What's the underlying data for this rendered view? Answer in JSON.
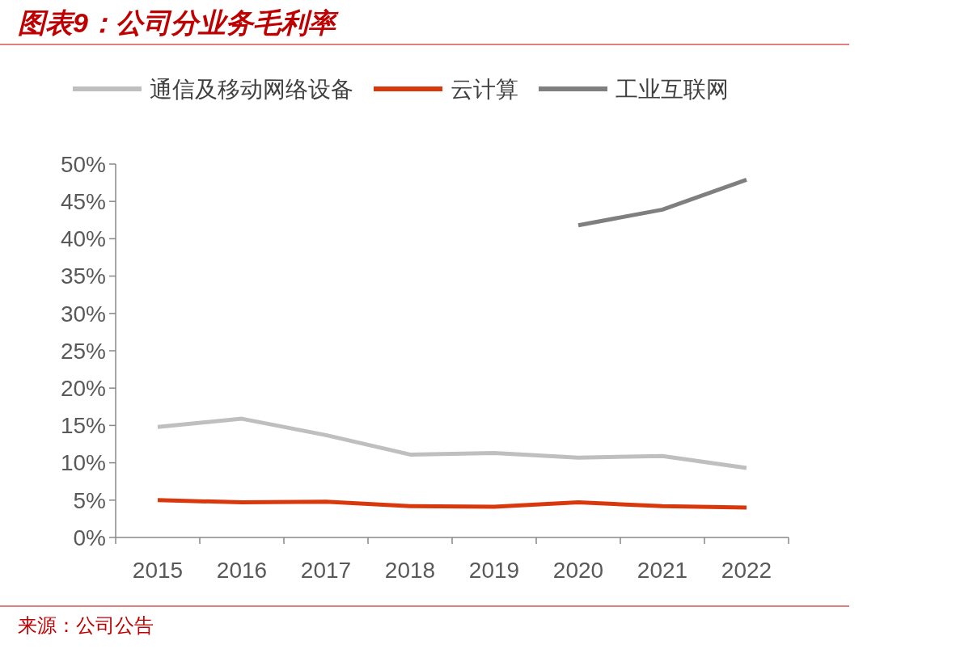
{
  "chart_data": {
    "type": "line",
    "title": "图表9：公司分业务毛利率",
    "categories": [
      "2015",
      "2016",
      "2017",
      "2018",
      "2019",
      "2020",
      "2021",
      "2022"
    ],
    "series": [
      {
        "name": "通信及移动网络设备",
        "color": "#bfbfbf",
        "values": [
          14.8,
          15.9,
          13.7,
          11.1,
          11.3,
          10.7,
          10.9,
          9.3
        ]
      },
      {
        "name": "云计算",
        "color": "#d9380d",
        "values": [
          5.0,
          4.7,
          4.8,
          4.2,
          4.1,
          4.7,
          4.2,
          4.0
        ]
      },
      {
        "name": "工业互联网",
        "color": "#7f7f7f",
        "values": [
          null,
          null,
          null,
          null,
          null,
          41.8,
          43.9,
          47.9
        ]
      }
    ],
    "ylim": [
      0,
      50
    ],
    "yticks": [
      {
        "value": 0,
        "label": "0%"
      },
      {
        "value": 5,
        "label": "5%"
      },
      {
        "value": 10,
        "label": "10%"
      },
      {
        "value": 15,
        "label": "15%"
      },
      {
        "value": 20,
        "label": "20%"
      },
      {
        "value": 25,
        "label": "25%"
      },
      {
        "value": 30,
        "label": "30%"
      },
      {
        "value": 35,
        "label": "35%"
      },
      {
        "value": 40,
        "label": "40%"
      },
      {
        "value": 45,
        "label": "45%"
      },
      {
        "value": 50,
        "label": "50%"
      }
    ],
    "grid": false,
    "legend": "top",
    "marker": "none",
    "line_style": "solid",
    "annotations": [
      "来源：公司公告"
    ]
  }
}
